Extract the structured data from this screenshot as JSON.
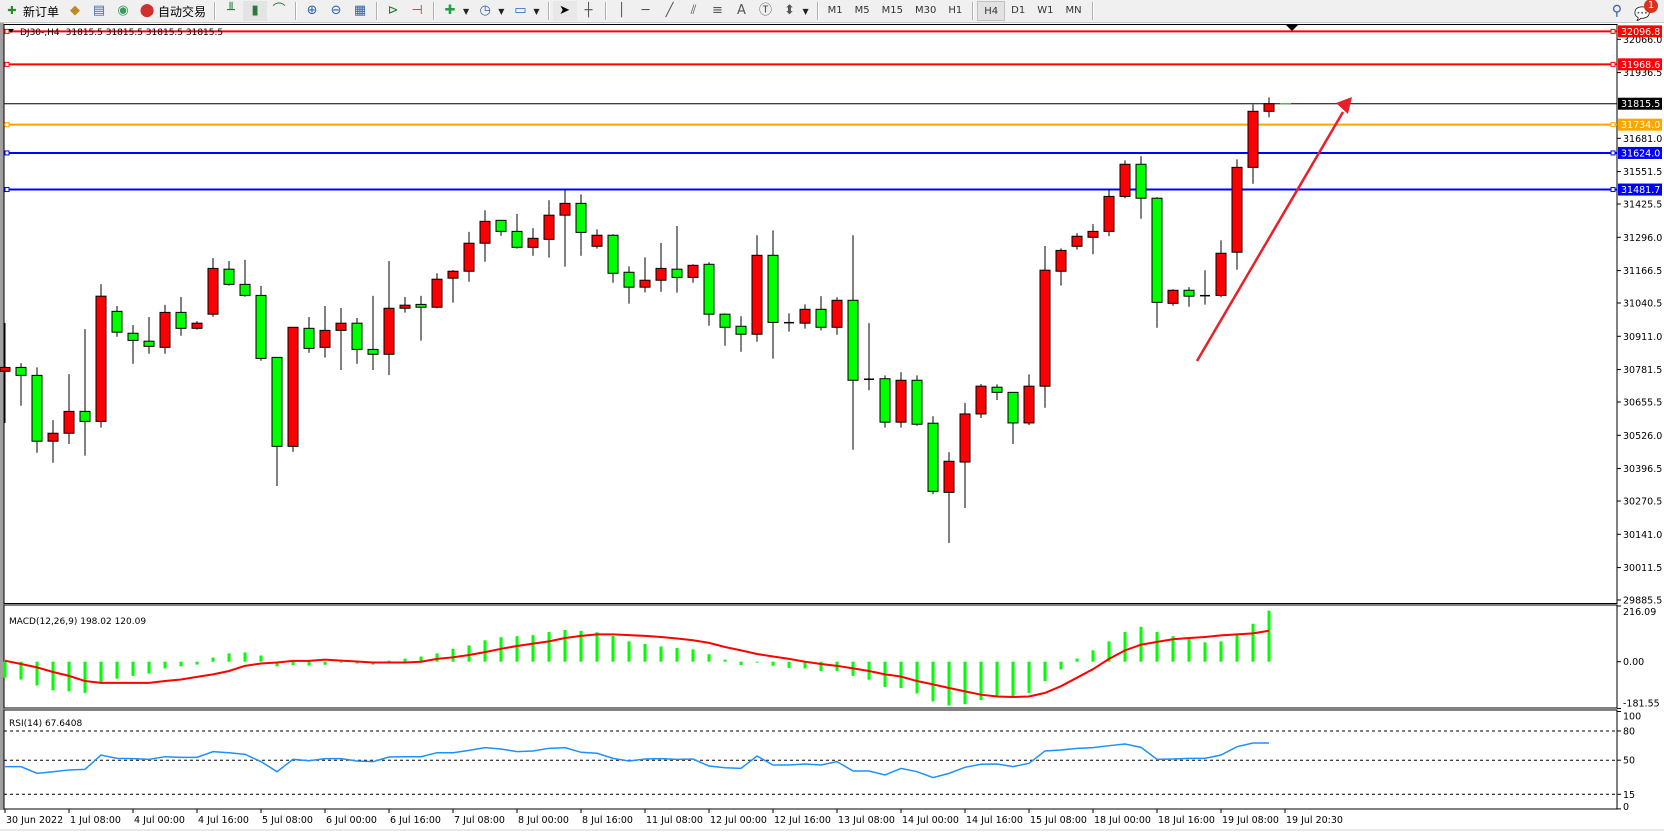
{
  "toolbar": {
    "new_order": "新订单",
    "auto_trading": "自动交易",
    "timeframes": [
      "M1",
      "M5",
      "M15",
      "M30",
      "H1",
      "H4",
      "D1",
      "W1",
      "MN"
    ],
    "active_timeframe": "H4",
    "notification_count": "1"
  },
  "chart_header": {
    "symbol_tf": "DJ30-,H4",
    "ohlc": "31815.5 31815.5 31815.5 31815.5"
  },
  "colors": {
    "bull": "#ff0000",
    "bear": "#00ff00",
    "resistance_line": "#ff0000",
    "orange_line": "#ffa500",
    "support_line": "#0000ff",
    "macd_hist": "#00ff00",
    "macd_signal": "#ff0000",
    "rsi": "#1e90ff",
    "arrow": "#e8202a"
  },
  "chart_data": [
    {
      "type": "candlestick",
      "symbol": "DJ30-",
      "timeframe": "H4",
      "y_ticks": [
        "32066.0",
        "31936.5",
        "31681.0",
        "31551.5",
        "31425.5",
        "31296.0",
        "31166.5",
        "31040.5",
        "30911.0",
        "30781.5",
        "30655.5",
        "30526.0",
        "30396.5",
        "30270.5",
        "30141.0",
        "30011.5",
        "29885.5"
      ],
      "ylim": [
        29885.5,
        32096.8
      ],
      "x_labels": [
        {
          "bar": 0,
          "text": "30 Jun 2022"
        },
        {
          "bar": 4,
          "text": "1 Jul 08:00"
        },
        {
          "bar": 8,
          "text": "4 Jul 00:00"
        },
        {
          "bar": 12,
          "text": "4 Jul 16:00"
        },
        {
          "bar": 16,
          "text": "5 Jul 08:00"
        },
        {
          "bar": 20,
          "text": "6 Jul 00:00"
        },
        {
          "bar": 24,
          "text": "6 Jul 16:00"
        },
        {
          "bar": 28,
          "text": "7 Jul 08:00"
        },
        {
          "bar": 32,
          "text": "8 Jul 00:00"
        },
        {
          "bar": 36,
          "text": "8 Jul 16:00"
        },
        {
          "bar": 40,
          "text": "11 Jul 08:00"
        },
        {
          "bar": 44,
          "text": "12 Jul 00:00"
        },
        {
          "bar": 48,
          "text": "12 Jul 16:00"
        },
        {
          "bar": 52,
          "text": "13 Jul 08:00"
        },
        {
          "bar": 56,
          "text": "14 Jul 00:00"
        },
        {
          "bar": 60,
          "text": "14 Jul 16:00"
        },
        {
          "bar": 64,
          "text": "15 Jul 08:00"
        },
        {
          "bar": 68,
          "text": "18 Jul 00:00"
        },
        {
          "bar": 72,
          "text": "18 Jul 16:00"
        },
        {
          "bar": 76,
          "text": "19 Jul 08:00"
        },
        {
          "bar": 80,
          "text": "19 Jul 20:30"
        }
      ],
      "ohlc": [
        [
          30775,
          30963,
          30574,
          30790
        ],
        [
          30790,
          30806,
          30641,
          30759
        ],
        [
          30759,
          30790,
          30458,
          30503
        ],
        [
          30503,
          30585,
          30419,
          30534
        ],
        [
          30534,
          30764,
          30492,
          30619
        ],
        [
          30619,
          30939,
          30447,
          30580
        ],
        [
          30580,
          31114,
          30556,
          31067
        ],
        [
          31008,
          31029,
          30909,
          30927
        ],
        [
          30923,
          30955,
          30804,
          30895
        ],
        [
          30892,
          30986,
          30843,
          30872
        ],
        [
          30868,
          31033,
          30843,
          31004
        ],
        [
          31004,
          31064,
          30913,
          30942
        ],
        [
          30942,
          30970,
          30937,
          30962
        ],
        [
          30997,
          31215,
          30987,
          31175
        ],
        [
          31172,
          31204,
          31108,
          31113
        ],
        [
          31113,
          31208,
          31065,
          31070
        ],
        [
          31070,
          31107,
          30816,
          30825
        ],
        [
          30829,
          30829,
          30329,
          30483
        ],
        [
          30483,
          30947,
          30462,
          30946
        ],
        [
          30942,
          30986,
          30847,
          30864
        ],
        [
          30868,
          31029,
          30828,
          30934
        ],
        [
          30934,
          31021,
          30780,
          30962
        ],
        [
          30962,
          30982,
          30804,
          30860
        ],
        [
          30860,
          31068,
          30780,
          30841
        ],
        [
          30841,
          31204,
          30760,
          31020
        ],
        [
          31020,
          31064,
          31003,
          31032
        ],
        [
          31035,
          31068,
          30894,
          31024
        ],
        [
          31024,
          31156,
          31020,
          31133
        ],
        [
          31137,
          31169,
          31042,
          31164
        ],
        [
          31164,
          31317,
          31123,
          31273
        ],
        [
          31273,
          31401,
          31201,
          31358
        ],
        [
          31362,
          31362,
          31302,
          31319
        ],
        [
          31319,
          31387,
          31252,
          31257
        ],
        [
          31257,
          31331,
          31224,
          31292
        ],
        [
          31288,
          31440,
          31217,
          31382
        ],
        [
          31382,
          31483,
          31182,
          31428
        ],
        [
          31428,
          31463,
          31224,
          31315
        ],
        [
          31261,
          31327,
          31252,
          31304
        ],
        [
          31304,
          31308,
          31119,
          31156
        ],
        [
          31160,
          31183,
          31038,
          31102
        ],
        [
          31102,
          31218,
          31082,
          31129
        ],
        [
          31129,
          31274,
          31084,
          31175
        ],
        [
          31172,
          31340,
          31081,
          31140
        ],
        [
          31140,
          31191,
          31119,
          31187
        ],
        [
          31191,
          31199,
          30952,
          30997
        ],
        [
          30997,
          31000,
          30874,
          30946
        ],
        [
          30950,
          30989,
          30851,
          30919
        ],
        [
          30919,
          31304,
          30890,
          31226
        ],
        [
          31226,
          31323,
          30824,
          30965
        ],
        [
          30964,
          31000,
          30929,
          30964
        ],
        [
          30962,
          31035,
          30941,
          31016
        ],
        [
          31016,
          31067,
          30934,
          30946
        ],
        [
          30946,
          31063,
          30917,
          31051
        ],
        [
          31051,
          31304,
          30470,
          30740
        ],
        [
          30744,
          30962,
          30701,
          30744
        ],
        [
          30746,
          30759,
          30556,
          30577
        ],
        [
          30577,
          30771,
          30556,
          30740
        ],
        [
          30740,
          30759,
          30563,
          30569
        ],
        [
          30573,
          30600,
          30297,
          30308
        ],
        [
          30304,
          30460,
          30107,
          30425
        ],
        [
          30422,
          30652,
          30243,
          30609
        ],
        [
          30609,
          30725,
          30593,
          30717
        ],
        [
          30713,
          30724,
          30663,
          30693
        ],
        [
          30693,
          30694,
          30492,
          30574
        ],
        [
          30574,
          30763,
          30566,
          30717
        ],
        [
          30717,
          31262,
          30633,
          31168
        ],
        [
          31164,
          31253,
          31108,
          31245
        ],
        [
          31261,
          31312,
          31248,
          31300
        ],
        [
          31296,
          31347,
          31230,
          31319
        ],
        [
          31319,
          31483,
          31300,
          31455
        ],
        [
          31455,
          31595,
          31448,
          31580
        ],
        [
          31580,
          31611,
          31368,
          31448
        ],
        [
          31448,
          31452,
          30944,
          31043
        ],
        [
          31039,
          31094,
          31030,
          31090
        ],
        [
          31090,
          31102,
          31026,
          31067
        ],
        [
          31069,
          31168,
          31034,
          31069
        ],
        [
          31070,
          31284,
          31063,
          31234
        ],
        [
          31238,
          31599,
          31170,
          31568
        ],
        [
          31568,
          31813,
          31504,
          31786
        ],
        [
          31786,
          31840,
          31763,
          31815.5
        ]
      ],
      "horizontal_lines": [
        {
          "price": "32096.8",
          "color": "#ff0000"
        },
        {
          "price": "31968.6",
          "color": "#ff0000"
        },
        {
          "price": "31734.0",
          "color": "#ffa500"
        },
        {
          "price": "31624.0",
          "color": "#0000ff"
        },
        {
          "price": "31481.7",
          "color": "#0000ff"
        }
      ],
      "current_price": "31815.5",
      "annotation": "up-arrow"
    },
    {
      "type": "bar+line",
      "title": "MACD(12,26,9) 198.02 120.09",
      "y_ticks": [
        "216.09",
        "0.00",
        "-181.55"
      ],
      "ylim": [
        -181.55,
        216.09
      ],
      "histogram": [
        -62,
        -69,
        -92,
        -111,
        -115,
        -121,
        -79,
        -66,
        -55,
        -46,
        -26,
        -18,
        -11,
        16,
        32,
        36,
        24,
        -18,
        -13,
        -15,
        -12,
        -3,
        -7,
        -11,
        4,
        12,
        20,
        32,
        50,
        63,
        83,
        95,
        99,
        103,
        115,
        123,
        120,
        114,
        100,
        79,
        69,
        59,
        53,
        48,
        29,
        8,
        -13,
        -3,
        -16,
        -24,
        -26,
        -36,
        -36,
        -55,
        -70,
        -98,
        -102,
        -123,
        -154,
        -170,
        -165,
        -149,
        -137,
        -135,
        -121,
        -75,
        -30,
        12,
        44,
        79,
        115,
        135,
        115,
        99,
        88,
        75,
        79,
        107,
        147,
        198.02
      ],
      "signal": [
        4,
        -9,
        -22,
        -40,
        -55,
        -75,
        -82,
        -82,
        -82,
        -82,
        -75,
        -69,
        -59,
        -49,
        -36,
        -16,
        -7,
        -3,
        3,
        3,
        8,
        4,
        1,
        -3,
        -3,
        -3,
        0,
        11,
        17,
        26,
        37,
        50,
        61,
        70,
        79,
        92,
        100,
        106,
        106,
        103,
        100,
        96,
        90,
        83,
        73,
        57,
        44,
        30,
        20,
        11,
        0,
        -9,
        -16,
        -26,
        -36,
        -49,
        -58,
        -75,
        -88,
        -102,
        -115,
        -128,
        -135,
        -137,
        -135,
        -121,
        -95,
        -62,
        -29,
        11,
        44,
        66,
        77,
        87,
        92,
        96,
        102,
        106,
        110,
        120.09
      ]
    },
    {
      "type": "line",
      "title": "RSI(14) 67.6408",
      "y_ticks": [
        "100",
        "80",
        "50",
        "15",
        "0"
      ],
      "levels": [
        80,
        50,
        15
      ],
      "ylim": [
        0,
        100
      ],
      "values": [
        43.4,
        43.4,
        36.5,
        38.2,
        40,
        40.6,
        55.3,
        51.9,
        51.6,
        50.9,
        53.6,
        52.9,
        52.9,
        58.8,
        57.7,
        56,
        48.5,
        38.2,
        50.9,
        49.5,
        51.6,
        51.6,
        49.2,
        48.5,
        53.3,
        53.6,
        53.6,
        57.7,
        57.7,
        60.1,
        62.9,
        61.5,
        58.8,
        59.5,
        62.2,
        62.9,
        58.1,
        57.1,
        51.9,
        49.2,
        51.2,
        51.6,
        50.9,
        51.2,
        44,
        42.3,
        41.6,
        54.3,
        45.1,
        45.1,
        46.1,
        45.1,
        48.5,
        38.9,
        38.9,
        34.8,
        41.6,
        38.2,
        32.1,
        36.5,
        42.7,
        45.8,
        46.1,
        43.4,
        46.8,
        59.5,
        60.5,
        62.2,
        62.9,
        64.9,
        66.6,
        63.2,
        50.9,
        51.2,
        51.9,
        51.9,
        55.3,
        63.9,
        67.7,
        67.6408
      ]
    }
  ]
}
